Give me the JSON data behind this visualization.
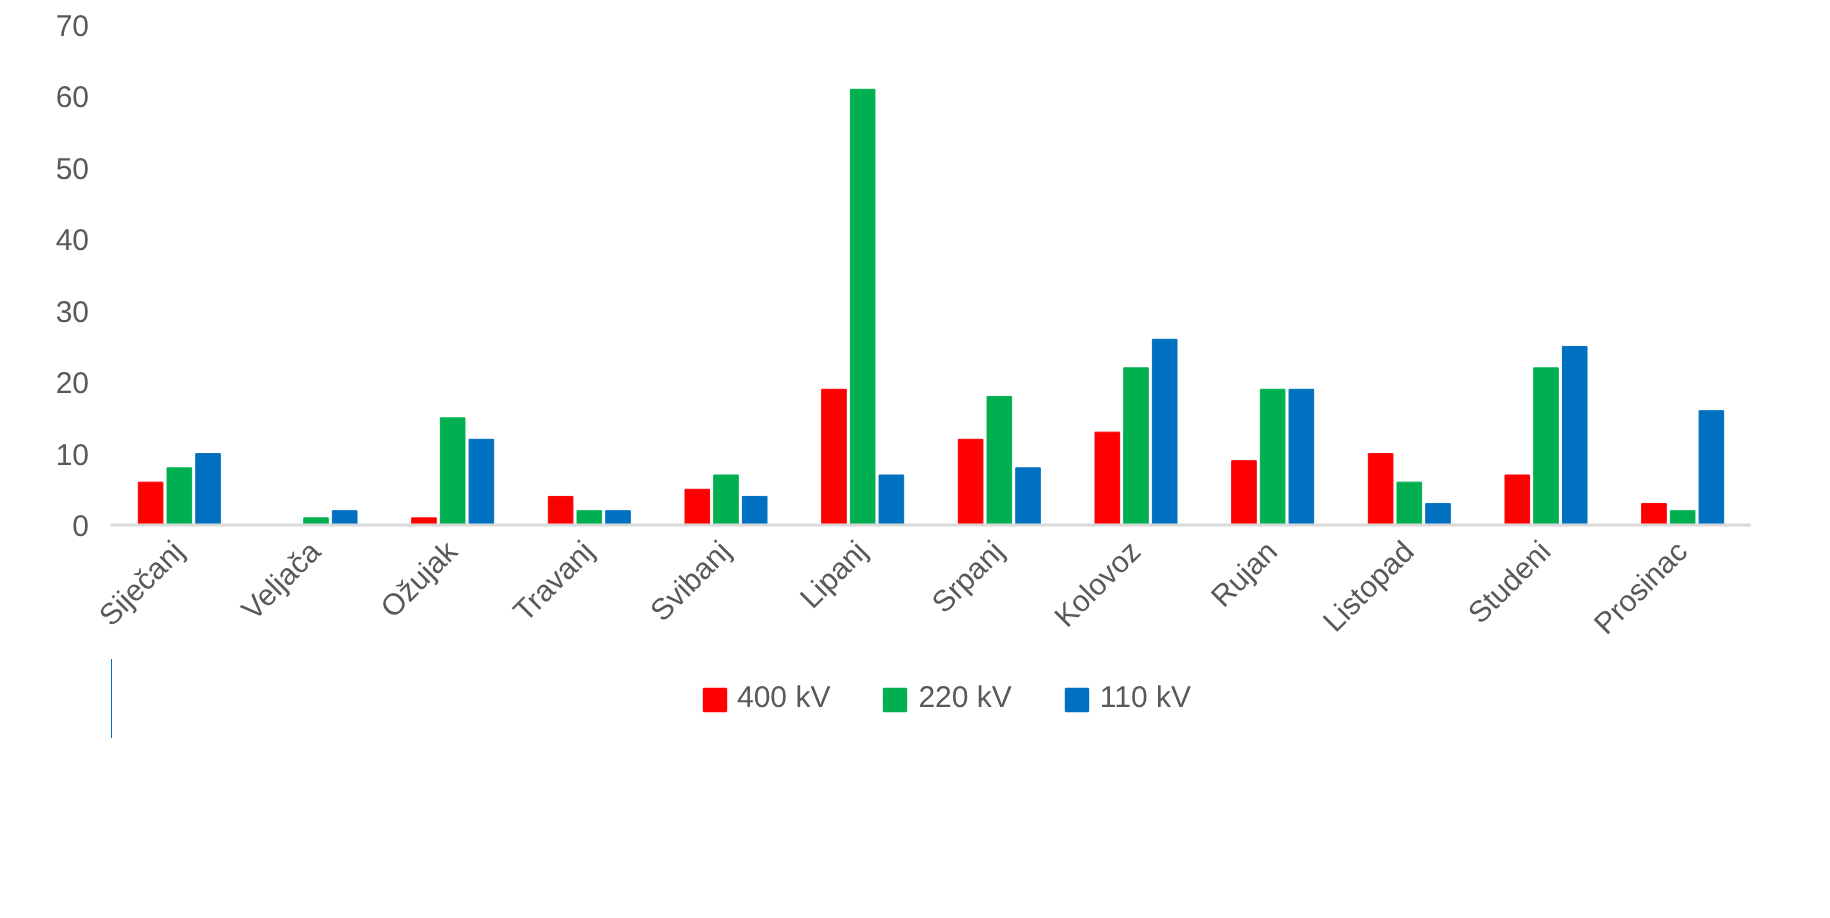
{
  "chart_data": {
    "type": "bar",
    "categories": [
      "Siječanj",
      "Veljača",
      "Ožujak",
      "Travanj",
      "Svibanj",
      "Lipanj",
      "Srpanj",
      "Kolovoz",
      "Rujan",
      "Listopad",
      "Studeni",
      "Prosinac"
    ],
    "series": [
      {
        "name": "400 kV",
        "color": "#ff0000",
        "values": [
          6,
          0,
          1,
          4,
          5,
          19,
          12,
          13,
          9,
          10,
          7,
          3
        ]
      },
      {
        "name": "220 kV",
        "color": "#00b050",
        "values": [
          8,
          1,
          15,
          2,
          7,
          61,
          18,
          22,
          19,
          6,
          22,
          2
        ]
      },
      {
        "name": "110 kV",
        "color": "#0070c0",
        "values": [
          10,
          2,
          12,
          2,
          4,
          7,
          8,
          26,
          19,
          3,
          25,
          16
        ]
      }
    ],
    "ylim": [
      0,
      70
    ],
    "yticks": [
      0,
      10,
      20,
      30,
      40,
      50,
      60,
      70
    ],
    "grid": false,
    "legend": "bottom"
  }
}
